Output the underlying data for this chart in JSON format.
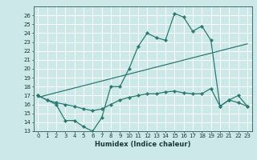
{
  "xlabel": "Humidex (Indice chaleur)",
  "bg_color": "#cce8e8",
  "grid_color": "#ffffff",
  "line_color": "#2a7a70",
  "xlim": [
    -0.5,
    23.5
  ],
  "ylim": [
    13,
    27
  ],
  "yticks": [
    13,
    14,
    15,
    16,
    17,
    18,
    19,
    20,
    21,
    22,
    23,
    24,
    25,
    26
  ],
  "xticks": [
    0,
    1,
    2,
    3,
    4,
    5,
    6,
    7,
    8,
    9,
    10,
    11,
    12,
    13,
    14,
    15,
    16,
    17,
    18,
    19,
    20,
    21,
    22,
    23
  ],
  "series_high": {
    "x": [
      0,
      1,
      2,
      3,
      4,
      5,
      6,
      7,
      8,
      9,
      10,
      11,
      12,
      13,
      14,
      15,
      16,
      17,
      18,
      19,
      20,
      21,
      22,
      23
    ],
    "y": [
      17,
      16.5,
      16,
      14.2,
      14.2,
      13.5,
      13.0,
      14.5,
      18.0,
      18.0,
      20.0,
      22.5,
      24.0,
      23.5,
      23.2,
      26.2,
      25.8,
      24.2,
      24.8,
      23.2,
      15.8,
      16.5,
      17.0,
      15.8
    ]
  },
  "series_low": {
    "x": [
      0,
      1,
      2,
      3,
      4,
      5,
      6,
      7,
      8,
      9,
      10,
      11,
      12,
      13,
      14,
      15,
      16,
      17,
      18,
      19,
      20,
      21,
      22,
      23
    ],
    "y": [
      17.0,
      16.5,
      16.2,
      16.0,
      15.8,
      15.5,
      15.3,
      15.5,
      16.0,
      16.5,
      16.8,
      17.0,
      17.2,
      17.2,
      17.4,
      17.5,
      17.3,
      17.2,
      17.2,
      17.8,
      15.8,
      16.5,
      16.2,
      15.8
    ]
  },
  "series_diag": {
    "x": [
      0,
      23
    ],
    "y": [
      16.8,
      22.8
    ]
  }
}
